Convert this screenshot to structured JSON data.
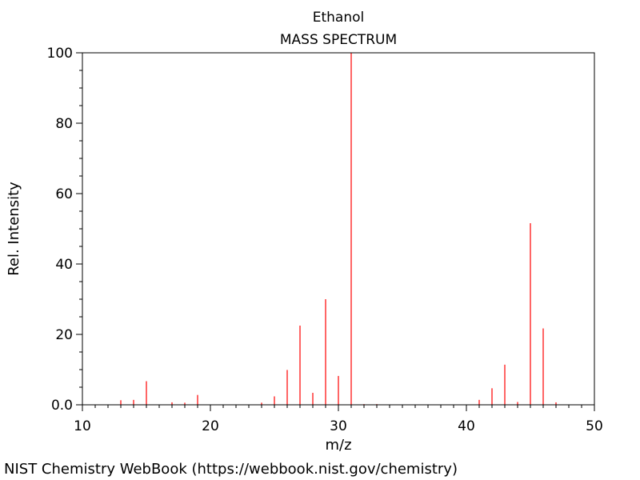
{
  "chart_data": {
    "type": "bar",
    "title": "Ethanol",
    "subtitle": "MASS SPECTRUM",
    "xlabel": "m/z",
    "ylabel": "Rel. Intensity",
    "xlim": [
      10,
      50
    ],
    "ylim": [
      0,
      100
    ],
    "x_ticks": [
      "10",
      "20",
      "30",
      "40",
      "50"
    ],
    "y_ticks": [
      "0.0",
      "20",
      "40",
      "60",
      "80",
      "100"
    ],
    "peak_color": "#ff0000",
    "grid": false,
    "peaks": [
      {
        "mz": 13,
        "intensity": 1.3
      },
      {
        "mz": 14,
        "intensity": 1.4
      },
      {
        "mz": 15,
        "intensity": 6.7
      },
      {
        "mz": 17,
        "intensity": 0.7
      },
      {
        "mz": 18,
        "intensity": 0.6
      },
      {
        "mz": 19,
        "intensity": 2.8
      },
      {
        "mz": 24,
        "intensity": 0.6
      },
      {
        "mz": 25,
        "intensity": 2.4
      },
      {
        "mz": 26,
        "intensity": 9.9
      },
      {
        "mz": 27,
        "intensity": 22.5
      },
      {
        "mz": 28,
        "intensity": 3.4
      },
      {
        "mz": 29,
        "intensity": 30.0
      },
      {
        "mz": 30,
        "intensity": 8.2
      },
      {
        "mz": 31,
        "intensity": 100.0
      },
      {
        "mz": 32,
        "intensity": 0.2
      },
      {
        "mz": 33,
        "intensity": 0.2
      },
      {
        "mz": 41,
        "intensity": 1.4
      },
      {
        "mz": 42,
        "intensity": 4.7
      },
      {
        "mz": 43,
        "intensity": 11.4
      },
      {
        "mz": 44,
        "intensity": 0.8
      },
      {
        "mz": 45,
        "intensity": 51.6
      },
      {
        "mz": 46,
        "intensity": 21.7
      },
      {
        "mz": 47,
        "intensity": 0.7
      }
    ]
  },
  "footer": {
    "source": "NIST Chemistry WebBook (https://webbook.nist.gov/chemistry)"
  }
}
